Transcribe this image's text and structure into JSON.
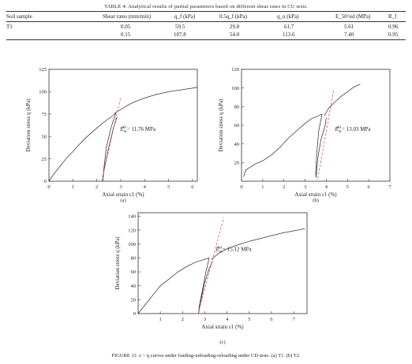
{
  "table": {
    "caption": "TABLE 4: Analytical results of partial parameters based on different shear rates in CU tests.",
    "headers": [
      "Soil sample",
      "Shear rates (mm/min)",
      "q_f (kPa)",
      "0.5q_f (kPa)",
      "q_u (kPa)",
      "E_50^ed (MPa)",
      "R_f"
    ],
    "rows": [
      [
        "T1",
        "0.05",
        "59.5",
        "29.8",
        "61.7",
        "5.61",
        "0.96"
      ],
      [
        "",
        "0.15",
        "107.8",
        "54.0",
        "113.6",
        "7.40",
        "0.95"
      ]
    ]
  },
  "figure_caption": "FIGURE 11: ε ~ q curves under loading-unloading-reloading under CD tests. (a) T1. (b) T2.",
  "colors": {
    "curve": "#333333",
    "dashed": "#e0564a",
    "axis": "#333333"
  },
  "chart_data": [
    {
      "type": "line",
      "panel": "(a)",
      "xlabel": "Axial strain ε1 (%)",
      "ylabel": "Deviation stress q (kPa)",
      "xlim": [
        0,
        6.2
      ],
      "ylim": [
        0,
        125
      ],
      "xticks": [
        0,
        1,
        2,
        3,
        4,
        5,
        6
      ],
      "yticks": [
        0,
        25,
        50,
        75,
        100,
        125
      ],
      "annotation": "Eur = 11.76 MPa",
      "ann_sym": "E",
      "ann_sub": "ur",
      "ann_sup": "ref",
      "ann_val": "= 11.76 MPa",
      "series": [
        {
          "style": "solid",
          "x": [
            0,
            0.2,
            0.5,
            0.8,
            1.0,
            1.3,
            1.6,
            1.9,
            2.2,
            2.5,
            2.7,
            2.8
          ],
          "y": [
            0,
            8,
            18,
            28,
            33,
            42,
            50,
            57,
            64,
            70,
            74,
            77
          ]
        },
        {
          "style": "solid",
          "x": [
            2.8,
            2.6,
            2.4,
            2.3,
            2.25,
            2.3,
            2.5,
            2.7,
            2.85
          ],
          "y": [
            77,
            60,
            38,
            15,
            0,
            12,
            38,
            60,
            72
          ]
        },
        {
          "style": "solid",
          "x": [
            2.8,
            3.0,
            3.3,
            3.6,
            4.0,
            4.5,
            5.0,
            5.5,
            6.0,
            6.2
          ],
          "y": [
            77,
            80,
            85,
            89,
            93,
            97,
            100,
            102,
            104,
            105
          ]
        },
        {
          "style": "dashed",
          "x": [
            2.2,
            3.0
          ],
          "y": [
            0,
            94
          ]
        }
      ]
    },
    {
      "type": "line",
      "panel": "(b)",
      "xlabel": "Axial strain ε1 (%)",
      "ylabel": "Deviation stress q (kPa)",
      "xlim": [
        0,
        7
      ],
      "ylim": [
        0,
        120
      ],
      "xticks": [
        0,
        1,
        2,
        3,
        4,
        5,
        6,
        7
      ],
      "yticks": [
        20,
        40,
        60,
        80,
        100,
        120
      ],
      "annotation": "Eur = 13.03 MPa",
      "ann_sym": "E",
      "ann_sub": "ur",
      "ann_sup": "ref",
      "ann_val": "= 13.03 MPa",
      "series": [
        {
          "style": "solid",
          "x": [
            0.1,
            0.2,
            0.6,
            1.0,
            1.4,
            1.8,
            2.2,
            2.6,
            3.0,
            3.3,
            3.6,
            3.8
          ],
          "y": [
            5,
            12,
            18,
            22,
            28,
            36,
            46,
            54,
            62,
            67,
            70,
            72
          ]
        },
        {
          "style": "solid",
          "x": [
            3.8,
            3.65,
            3.55,
            3.5,
            3.52,
            3.6,
            3.75,
            3.95,
            4.0
          ],
          "y": [
            72,
            55,
            30,
            10,
            4,
            25,
            45,
            60,
            68
          ]
        },
        {
          "style": "solid",
          "x": [
            3.9,
            4.1,
            4.4,
            4.7,
            5.0,
            5.3,
            5.6
          ],
          "y": [
            70,
            78,
            85,
            91,
            96,
            101,
            104
          ]
        },
        {
          "style": "dashed",
          "x": [
            3.6,
            4.35
          ],
          "y": [
            3,
            98
          ]
        }
      ]
    },
    {
      "type": "line",
      "panel": "(c)",
      "xlabel": "Axial strain ε1 (%)",
      "ylabel": "Deviation stress q (kPa)",
      "xlim": [
        0,
        7.6
      ],
      "ylim": [
        0,
        145
      ],
      "xticks": [
        1,
        2,
        3,
        4,
        5,
        6,
        7
      ],
      "yticks": [
        0,
        20,
        40,
        60,
        80,
        100,
        120,
        140
      ],
      "annotation": "Eur = 15.12 MPa",
      "ann_sym": "E",
      "ann_sub": "ur",
      "ann_sup": "ref",
      "ann_val": "= 15.12 MPa",
      "series": [
        {
          "style": "solid",
          "x": [
            0,
            0.3,
            0.7,
            1.0,
            1.4,
            1.8,
            2.2,
            2.6,
            3.0,
            3.2
          ],
          "y": [
            0,
            12,
            28,
            40,
            50,
            60,
            68,
            74,
            78,
            80
          ]
        },
        {
          "style": "solid",
          "x": [
            3.2,
            3.05,
            2.9,
            2.75,
            2.72,
            2.8,
            3.0,
            3.2,
            3.35
          ],
          "y": [
            80,
            60,
            35,
            10,
            0,
            15,
            45,
            65,
            75
          ]
        },
        {
          "style": "solid",
          "x": [
            3.3,
            3.6,
            4.0,
            4.5,
            5.0,
            5.5,
            6.0,
            6.5,
            7.0,
            7.5
          ],
          "y": [
            78,
            86,
            93,
            99,
            104,
            108,
            112,
            116,
            119,
            122
          ]
        },
        {
          "style": "dashed",
          "x": [
            2.7,
            3.85
          ],
          "y": [
            0,
            138
          ]
        }
      ]
    }
  ]
}
